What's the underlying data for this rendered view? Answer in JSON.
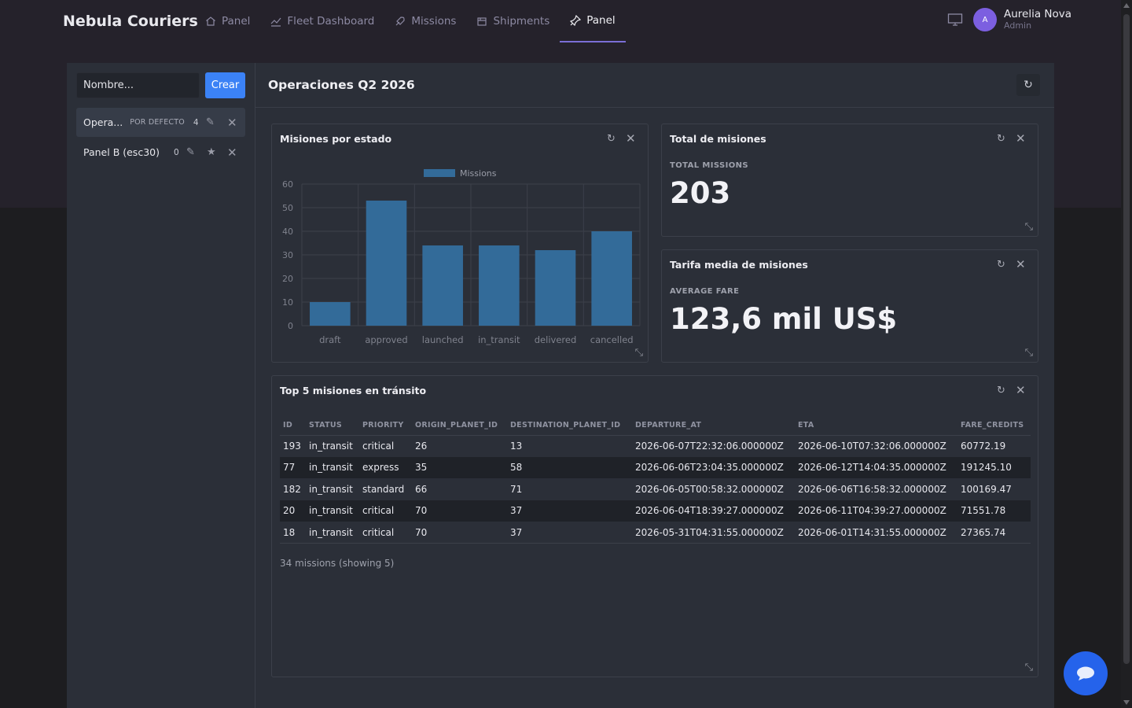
{
  "brand": "Nebula Couriers",
  "nav": {
    "items": [
      {
        "label": "Panel",
        "icon": "home-icon"
      },
      {
        "label": "Fleet Dashboard",
        "icon": "chart-line-icon"
      },
      {
        "label": "Missions",
        "icon": "rocket-icon"
      },
      {
        "label": "Shipments",
        "icon": "package-icon"
      },
      {
        "label": "Panel",
        "icon": "pin-icon",
        "active": true
      }
    ]
  },
  "user": {
    "initial": "A",
    "name": "Aurelia Nova",
    "role": "Admin"
  },
  "sidebar": {
    "input_placeholder": "Nombre...",
    "create_label": "Crear",
    "dashboards": [
      {
        "name": "Opera...",
        "badge": "POR DEFECTO",
        "count": "4",
        "selected": true
      },
      {
        "name": "Panel B (esc30)",
        "badge": "",
        "count": "0",
        "selected": false
      }
    ]
  },
  "main": {
    "title": "Operaciones Q2 2026",
    "refresh_icon": "↻"
  },
  "widgets": {
    "chart_title": "Misiones por estado",
    "total_title": "Total de misiones",
    "total_label": "TOTAL MISSIONS",
    "total_value": "203",
    "fare_title": "Tarifa media de misiones",
    "fare_label": "AVERAGE FARE",
    "fare_value": "123,6 mil US$",
    "table_title": "Top 5 misiones en tránsito",
    "table_footer": "34 missions (showing 5)"
  },
  "chart_data": {
    "type": "bar",
    "categories": [
      "draft",
      "approved",
      "launched",
      "in_transit",
      "delivered",
      "cancelled"
    ],
    "series": [
      {
        "name": "Missions",
        "values": [
          10,
          53,
          34,
          34,
          32,
          40
        ]
      }
    ],
    "ylim": [
      0,
      60
    ],
    "yticks": [
      0,
      10,
      20,
      30,
      40,
      50,
      60
    ],
    "legend": "top-center",
    "grid": true,
    "color": "#336b99"
  },
  "table": {
    "columns": [
      "ID",
      "STATUS",
      "PRIORITY",
      "ORIGIN_PLANET_ID",
      "DESTINATION_PLANET_ID",
      "DEPARTURE_AT",
      "ETA",
      "FARE_CREDITS"
    ],
    "rows": [
      [
        "193",
        "in_transit",
        "critical",
        "26",
        "13",
        "2026-06-07T22:32:06.000000Z",
        "2026-06-10T07:32:06.000000Z",
        "60772.19"
      ],
      [
        "77",
        "in_transit",
        "express",
        "35",
        "58",
        "2026-06-06T23:04:35.000000Z",
        "2026-06-12T14:04:35.000000Z",
        "191245.10"
      ],
      [
        "182",
        "in_transit",
        "standard",
        "66",
        "71",
        "2026-06-05T00:58:32.000000Z",
        "2026-06-06T16:58:32.000000Z",
        "100169.47"
      ],
      [
        "20",
        "in_transit",
        "critical",
        "70",
        "37",
        "2026-06-04T18:39:27.000000Z",
        "2026-06-11T04:39:27.000000Z",
        "71551.78"
      ],
      [
        "18",
        "in_transit",
        "critical",
        "70",
        "37",
        "2026-05-31T04:31:55.000000Z",
        "2026-06-01T14:31:55.000000Z",
        "27365.74"
      ]
    ]
  },
  "colors": {
    "accent": "#3b82f6",
    "active_tab": "#7b6fd6",
    "avatar": "#7c5fe0",
    "bar": "#336b99"
  }
}
